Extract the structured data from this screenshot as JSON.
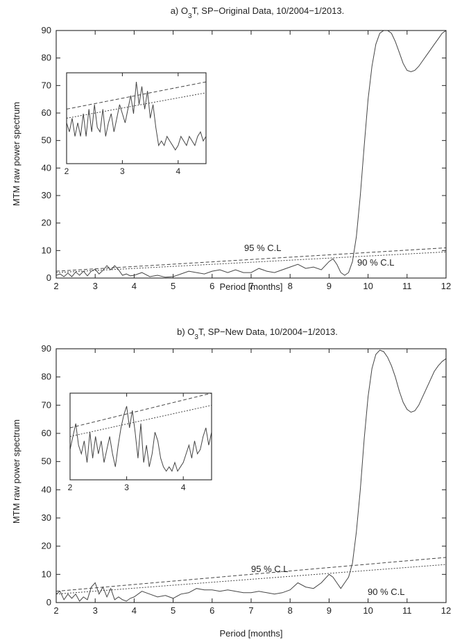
{
  "chart_data": [
    {
      "type": "line",
      "title_prefix": "a) O",
      "title_sub": "3",
      "title_suffix": "T, SP−Original Data, 10/2004−1/2013.",
      "xlabel": "Period [months]",
      "ylabel": "MTM raw power spectrum",
      "xlim": [
        2,
        12
      ],
      "ylim": [
        0,
        90
      ],
      "xticks": [
        "2",
        "3",
        "4",
        "5",
        "6",
        "7",
        "8",
        "9",
        "10",
        "11",
        "12"
      ],
      "yticks": [
        "0",
        "10",
        "20",
        "30",
        "40",
        "50",
        "60",
        "70",
        "80",
        "90"
      ],
      "annotations": [
        "95 % C.L",
        "90 % C.L"
      ],
      "series": [
        {
          "x": [
            2.0,
            2.1,
            2.2,
            2.3,
            2.4,
            2.5,
            2.6,
            2.7,
            2.8,
            2.9,
            3.0,
            3.1,
            3.2,
            3.3,
            3.4,
            3.5,
            3.6,
            3.7,
            3.8,
            3.9,
            4.0,
            4.2,
            4.4,
            4.6,
            4.8,
            5.0,
            5.2,
            5.4,
            5.6,
            5.8,
            6.0,
            6.2,
            6.4,
            6.6,
            6.8,
            7.0,
            7.2,
            7.4,
            7.6,
            7.8,
            8.0,
            8.2,
            8.4,
            8.6,
            8.8,
            9.0,
            9.1,
            9.2,
            9.3,
            9.4,
            9.5,
            9.6,
            9.7,
            9.8,
            9.9,
            10.0,
            10.1,
            10.2,
            10.3,
            10.4,
            10.5,
            10.6,
            10.7,
            10.8,
            10.9,
            11.0,
            11.1,
            11.2,
            11.3,
            11.4,
            11.5,
            11.6,
            11.7,
            11.8,
            11.9,
            12.0
          ],
          "values": [
            1.0,
            1.5,
            0.5,
            1.8,
            0.5,
            2.2,
            1.0,
            2.5,
            0.8,
            2.5,
            3.2,
            1.5,
            2.8,
            4.5,
            3.0,
            4.5,
            3.0,
            1.0,
            1.5,
            0.8,
            1.0,
            2.0,
            0.5,
            1.0,
            0.3,
            0.5,
            1.5,
            2.5,
            2.0,
            1.5,
            2.5,
            3.0,
            2.0,
            3.0,
            2.0,
            2.0,
            3.5,
            2.5,
            2.0,
            3.0,
            4.0,
            5.0,
            3.5,
            4.0,
            3.0,
            6.0,
            7.0,
            5.0,
            2.0,
            1.0,
            2.0,
            6.0,
            15.0,
            30.0,
            48.0,
            65.0,
            77.0,
            85.0,
            89.0,
            90.0,
            90.0,
            89.0,
            86.0,
            82.0,
            78.0,
            75.5,
            75.0,
            75.5,
            77.0,
            79.0,
            81.0,
            83.0,
            85.0,
            87.0,
            89.0,
            90.0
          ]
        },
        {
          "name": "95 % C.L",
          "x": [
            2,
            12
          ],
          "values": [
            2.5,
            11.0
          ]
        },
        {
          "name": "90 % C.L",
          "x": [
            2,
            12
          ],
          "values": [
            2.0,
            9.5
          ]
        }
      ],
      "inset": {
        "xlim": [
          2,
          4.5
        ],
        "xticks": [
          "2",
          "3",
          "4"
        ],
        "series": [
          {
            "x": [
              2.0,
              2.05,
              2.1,
              2.15,
              2.2,
              2.25,
              2.3,
              2.35,
              2.4,
              2.45,
              2.5,
              2.55,
              2.6,
              2.65,
              2.7,
              2.75,
              2.8,
              2.85,
              2.9,
              2.95,
              3.0,
              3.05,
              3.1,
              3.15,
              3.2,
              3.25,
              3.3,
              3.35,
              3.4,
              3.45,
              3.5,
              3.55,
              3.6,
              3.65,
              3.7,
              3.75,
              3.8,
              3.85,
              3.9,
              3.95,
              4.0,
              4.05,
              4.1,
              4.15,
              4.2,
              4.25,
              4.3,
              4.35,
              4.4,
              4.45,
              4.5
            ],
            "values": [
              0.45,
              0.35,
              0.5,
              0.3,
              0.45,
              0.3,
              0.55,
              0.3,
              0.6,
              0.35,
              0.65,
              0.4,
              0.35,
              0.6,
              0.3,
              0.45,
              0.55,
              0.35,
              0.5,
              0.65,
              0.55,
              0.45,
              0.6,
              0.75,
              0.55,
              0.9,
              0.65,
              0.85,
              0.6,
              0.8,
              0.5,
              0.65,
              0.4,
              0.2,
              0.25,
              0.2,
              0.3,
              0.25,
              0.2,
              0.15,
              0.2,
              0.3,
              0.25,
              0.2,
              0.3,
              0.25,
              0.2,
              0.3,
              0.35,
              0.25,
              0.3
            ]
          },
          {
            "name": "95 % C.L",
            "x": [
              2,
              4.5
            ],
            "values": [
              0.6,
              0.9
            ]
          },
          {
            "name": "90 % C.L",
            "x": [
              2,
              4.5
            ],
            "values": [
              0.5,
              0.78
            ]
          }
        ]
      }
    },
    {
      "type": "line",
      "title_prefix": "b) O",
      "title_sub": "3",
      "title_suffix": "T, SP−New Data, 10/2004−1/2013.",
      "xlabel": "Period [months]",
      "ylabel": "MTM raw power spectrum",
      "xlim": [
        2,
        12
      ],
      "ylim": [
        0,
        90
      ],
      "xticks": [
        "2",
        "3",
        "4",
        "5",
        "6",
        "7",
        "8",
        "9",
        "10",
        "11",
        "12"
      ],
      "yticks": [
        "0",
        "10",
        "20",
        "30",
        "40",
        "50",
        "60",
        "70",
        "80",
        "90"
      ],
      "annotations": [
        "95 % C.L",
        "90 % C.L"
      ],
      "series": [
        {
          "x": [
            2.0,
            2.1,
            2.2,
            2.3,
            2.4,
            2.5,
            2.6,
            2.7,
            2.8,
            2.9,
            3.0,
            3.1,
            3.2,
            3.3,
            3.4,
            3.5,
            3.6,
            3.7,
            3.8,
            3.9,
            4.0,
            4.2,
            4.4,
            4.6,
            4.8,
            5.0,
            5.2,
            5.4,
            5.6,
            5.8,
            6.0,
            6.2,
            6.4,
            6.6,
            6.8,
            7.0,
            7.2,
            7.4,
            7.6,
            7.8,
            8.0,
            8.2,
            8.4,
            8.6,
            8.8,
            9.0,
            9.1,
            9.2,
            9.3,
            9.4,
            9.5,
            9.6,
            9.7,
            9.8,
            9.9,
            10.0,
            10.1,
            10.2,
            10.3,
            10.4,
            10.5,
            10.6,
            10.7,
            10.8,
            10.9,
            11.0,
            11.1,
            11.2,
            11.3,
            11.4,
            11.5,
            11.6,
            11.7,
            11.8,
            11.9,
            12.0
          ],
          "values": [
            3.0,
            4.0,
            1.0,
            3.0,
            1.5,
            3.0,
            0.5,
            2.0,
            1.0,
            5.5,
            7.0,
            3.0,
            5.5,
            2.0,
            5.0,
            1.0,
            2.0,
            1.0,
            0.5,
            1.5,
            2.0,
            4.0,
            3.0,
            2.0,
            2.5,
            1.5,
            3.0,
            3.5,
            5.0,
            4.5,
            4.5,
            4.0,
            4.5,
            4.0,
            3.5,
            3.5,
            4.0,
            3.5,
            3.0,
            3.5,
            4.5,
            7.0,
            5.5,
            5.0,
            7.0,
            10.0,
            9.0,
            7.0,
            5.0,
            7.0,
            9.0,
            14.0,
            25.0,
            40.0,
            58.0,
            73.0,
            83.0,
            88.0,
            89.5,
            89.0,
            87.0,
            84.0,
            80.0,
            75.0,
            71.0,
            68.5,
            67.5,
            68.0,
            70.0,
            73.0,
            76.0,
            79.0,
            82.0,
            84.0,
            85.5,
            86.5
          ]
        },
        {
          "name": "95 % C.L",
          "x": [
            2,
            12
          ],
          "values": [
            4.0,
            16.0
          ]
        },
        {
          "name": "90 % C.L",
          "x": [
            2,
            12
          ],
          "values": [
            3.0,
            13.5
          ]
        }
      ],
      "inset": {
        "xlim": [
          2,
          4.5
        ],
        "xticks": [
          "2",
          "3",
          "4"
        ],
        "series": [
          {
            "x": [
              2.0,
              2.05,
              2.1,
              2.15,
              2.2,
              2.25,
              2.3,
              2.35,
              2.4,
              2.45,
              2.5,
              2.55,
              2.6,
              2.65,
              2.7,
              2.75,
              2.8,
              2.85,
              2.9,
              2.95,
              3.0,
              3.05,
              3.1,
              3.15,
              3.2,
              3.25,
              3.3,
              3.35,
              3.4,
              3.45,
              3.5,
              3.55,
              3.6,
              3.65,
              3.7,
              3.75,
              3.8,
              3.85,
              3.9,
              3.95,
              4.0,
              4.05,
              4.1,
              4.15,
              4.2,
              4.25,
              4.3,
              4.35,
              4.4,
              4.45,
              4.5
            ],
            "values": [
              0.35,
              0.5,
              0.65,
              0.4,
              0.3,
              0.45,
              0.2,
              0.55,
              0.25,
              0.5,
              0.3,
              0.45,
              0.2,
              0.35,
              0.5,
              0.3,
              0.15,
              0.4,
              0.6,
              0.75,
              0.85,
              0.6,
              0.8,
              0.55,
              0.25,
              0.65,
              0.2,
              0.4,
              0.15,
              0.3,
              0.55,
              0.45,
              0.25,
              0.15,
              0.1,
              0.15,
              0.1,
              0.2,
              0.1,
              0.15,
              0.2,
              0.3,
              0.4,
              0.25,
              0.45,
              0.3,
              0.35,
              0.5,
              0.6,
              0.4,
              0.55
            ]
          },
          {
            "name": "95 % C.L",
            "x": [
              2,
              4.5
            ],
            "values": [
              0.6,
              1.0
            ]
          },
          {
            "name": "90 % C.L",
            "x": [
              2,
              4.5
            ],
            "values": [
              0.5,
              0.86
            ]
          }
        ]
      }
    }
  ]
}
